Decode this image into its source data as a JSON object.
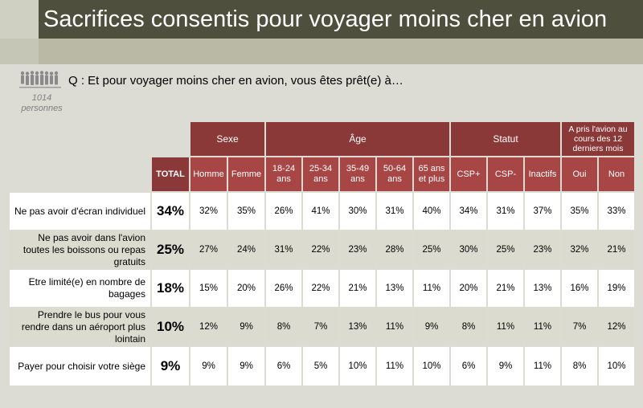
{
  "title": "Sacrifices consentis pour voyager moins cher en avion",
  "question": "Q : Et pour voyager moins cher en avion, vous êtes prêt(e) à…",
  "sample": {
    "count": "1014",
    "label": "personnes"
  },
  "colors": {
    "title_bg": "#4e4f3d",
    "header_dark": "#8b3838",
    "header_light": "#a84545",
    "row_alt": "#dbdbd0"
  },
  "groups": {
    "sexe": "Sexe",
    "age": "Âge",
    "statut": "Statut",
    "avion": "A pris l'avion au cours des 12 derniers mois"
  },
  "columns": [
    "TOTAL",
    "Homme",
    "Femme",
    "18-24 ans",
    "25-34 ans",
    "35-49 ans",
    "50-64 ans",
    "65 ans et plus",
    "CSP+",
    "CSP-",
    "Inactifs",
    "Oui",
    "Non"
  ],
  "rows": [
    {
      "label": "Ne pas avoir d'écran individuel",
      "values": [
        "34%",
        "32%",
        "35%",
        "26%",
        "41%",
        "30%",
        "31%",
        "40%",
        "34%",
        "31%",
        "37%",
        "35%",
        "33%"
      ]
    },
    {
      "label": "Ne pas avoir dans l'avion toutes les boissons ou repas gratuits",
      "values": [
        "25%",
        "27%",
        "24%",
        "31%",
        "22%",
        "23%",
        "28%",
        "25%",
        "30%",
        "25%",
        "23%",
        "32%",
        "21%"
      ]
    },
    {
      "label": "Etre limité(e) en nombre de bagages",
      "values": [
        "18%",
        "15%",
        "20%",
        "26%",
        "22%",
        "21%",
        "13%",
        "11%",
        "20%",
        "21%",
        "13%",
        "16%",
        "19%"
      ]
    },
    {
      "label": "Prendre le bus pour vous rendre dans un aéroport plus lointain",
      "values": [
        "10%",
        "12%",
        "9%",
        "8%",
        "7%",
        "13%",
        "11%",
        "9%",
        "8%",
        "11%",
        "11%",
        "7%",
        "12%"
      ]
    },
    {
      "label": "Payer pour choisir votre siège",
      "values": [
        "9%",
        "9%",
        "9%",
        "6%",
        "5%",
        "10%",
        "11%",
        "10%",
        "6%",
        "9%",
        "11%",
        "8%",
        "10%"
      ]
    }
  ]
}
